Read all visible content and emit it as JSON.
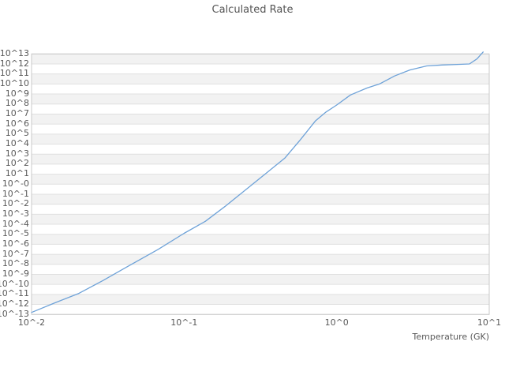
{
  "figure": {
    "background": "#ffffff",
    "text_color": "#595959",
    "title_color": "#545454"
  },
  "chart_data": {
    "type": "line",
    "title": "Calculated Rate",
    "xlabel": "Temperature (GK)",
    "ylabel": "",
    "x_scale": "log10",
    "y_scale": "log10",
    "x_log_range": [
      -2,
      1
    ],
    "y_log_range": [
      -13,
      13
    ],
    "legend": "none",
    "grid": {
      "horizontal_bands": true,
      "band_fill": "#f2f2f2",
      "grid_line": "#e0e0e0",
      "plot_border": "#c9c9c9"
    },
    "x_ticks": [
      {
        "log": -2,
        "label": "10^-2"
      },
      {
        "log": -1,
        "label": "10^-1"
      },
      {
        "log": 0,
        "label": "10^0"
      },
      {
        "log": 1,
        "label": "10^1"
      }
    ],
    "y_ticks": [
      {
        "log": 13,
        "label": "10^13"
      },
      {
        "log": 12,
        "label": "10^12"
      },
      {
        "log": 11,
        "label": "10^11"
      },
      {
        "log": 10,
        "label": "10^10"
      },
      {
        "log": 9,
        "label": "10^9"
      },
      {
        "log": 8,
        "label": "10^8"
      },
      {
        "log": 7,
        "label": "10^7"
      },
      {
        "log": 6,
        "label": "10^6"
      },
      {
        "log": 5,
        "label": "10^5"
      },
      {
        "log": 4,
        "label": "10^4"
      },
      {
        "log": 3,
        "label": "10^3"
      },
      {
        "log": 2,
        "label": "10^2"
      },
      {
        "log": 1,
        "label": "10^1"
      },
      {
        "log": 0,
        "label": "10^-0"
      },
      {
        "log": -1,
        "label": "10^-1"
      },
      {
        "log": -2,
        "label": "10^-2"
      },
      {
        "log": -3,
        "label": "10^-3"
      },
      {
        "log": -4,
        "label": "10^-4"
      },
      {
        "log": -5,
        "label": "10^-5"
      },
      {
        "log": -6,
        "label": "10^-6"
      },
      {
        "log": -7,
        "label": "10^-7"
      },
      {
        "log": -8,
        "label": "10^-8"
      },
      {
        "log": -9,
        "label": "10^-9"
      },
      {
        "log": -10,
        "label": "10^-10"
      },
      {
        "log": -11,
        "label": "10^-11"
      },
      {
        "log": -12,
        "label": "10^-12"
      },
      {
        "log": -13,
        "label": "10^-13"
      }
    ],
    "series": [
      {
        "name": "calculated rate",
        "color": "#6ea2d8",
        "points_log10": [
          [
            -2.0,
            -12.8
          ],
          [
            -1.84,
            -11.8
          ],
          [
            -1.69,
            -10.9
          ],
          [
            -1.53,
            -9.6
          ],
          [
            -1.38,
            -8.3
          ],
          [
            -1.17,
            -6.5
          ],
          [
            -1.0,
            -4.9
          ],
          [
            -0.86,
            -3.7
          ],
          [
            -0.73,
            -2.2
          ],
          [
            -0.6,
            -0.6
          ],
          [
            -0.47,
            1.0
          ],
          [
            -0.34,
            2.6
          ],
          [
            -0.24,
            4.4
          ],
          [
            -0.14,
            6.3
          ],
          [
            -0.07,
            7.2
          ],
          [
            0.0,
            7.9
          ],
          [
            0.09,
            8.9
          ],
          [
            0.2,
            9.6
          ],
          [
            0.28,
            10.0
          ],
          [
            0.38,
            10.8
          ],
          [
            0.48,
            11.4
          ],
          [
            0.59,
            11.8
          ],
          [
            0.69,
            11.9
          ],
          [
            0.79,
            11.95
          ],
          [
            0.87,
            12.0
          ],
          [
            0.92,
            12.5
          ],
          [
            0.96,
            13.2
          ]
        ]
      }
    ]
  }
}
